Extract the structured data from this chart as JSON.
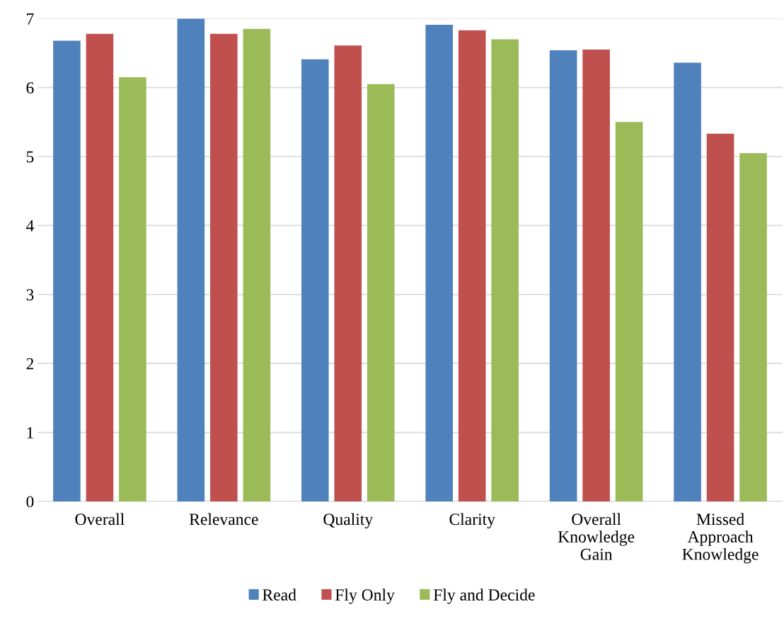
{
  "chart_data": {
    "type": "bar",
    "categories": [
      "Overall",
      "Relevance",
      "Quality",
      "Clarity",
      "Overall\nKnowledge\nGain",
      "Missed\nApproach\nKnowledge"
    ],
    "series": [
      {
        "name": "Read",
        "color": "#4f81bd",
        "values": [
          6.68,
          7.0,
          6.41,
          6.91,
          6.54,
          6.36
        ]
      },
      {
        "name": "Fly Only",
        "color": "#c0504d",
        "values": [
          6.78,
          6.78,
          6.61,
          6.83,
          6.55,
          5.33
        ]
      },
      {
        "name": "Fly and Decide",
        "color": "#9bbb59",
        "values": [
          6.15,
          6.85,
          6.05,
          6.7,
          5.5,
          5.05
        ]
      }
    ],
    "ylim": [
      0,
      7
    ],
    "yticks": [
      0,
      1,
      2,
      3,
      4,
      5,
      6,
      7
    ],
    "grid": "y",
    "legend": "bottom"
  }
}
